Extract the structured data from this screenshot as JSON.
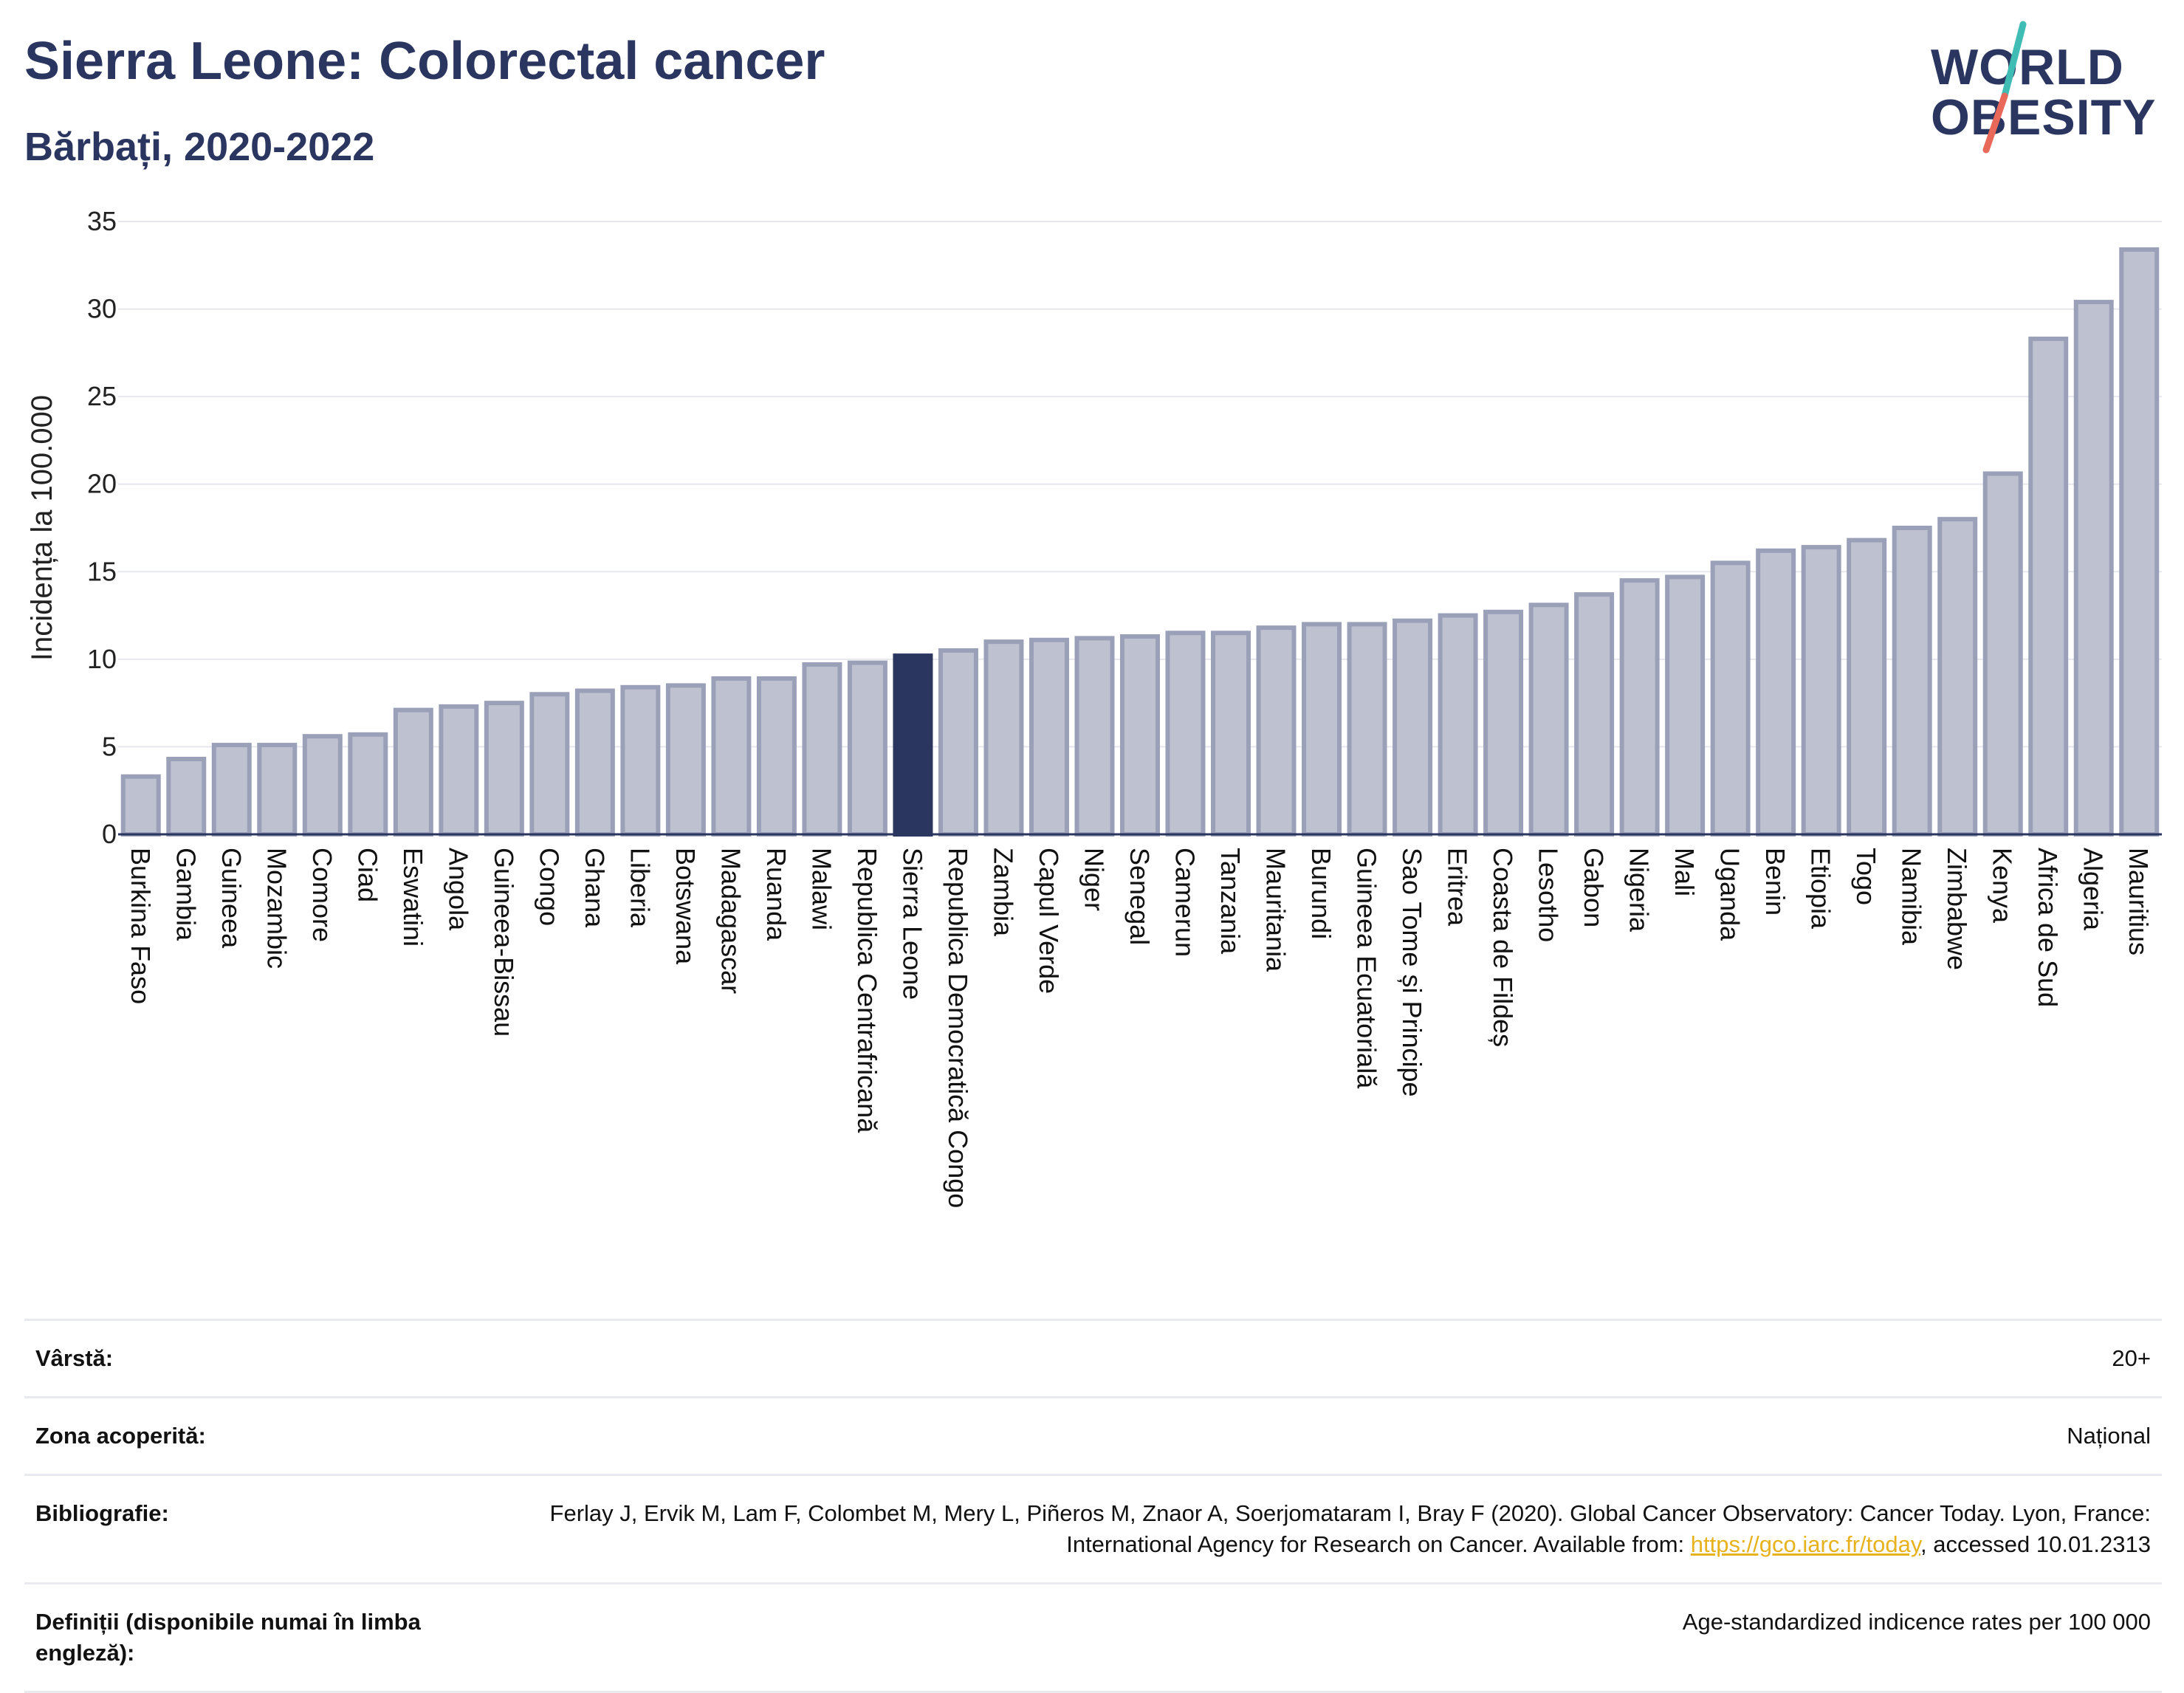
{
  "header": {
    "title": "Sierra Leone: Colorectal cancer",
    "subtitle": "Bărbați, 2020-2022"
  },
  "logo": {
    "line1": "WORLD",
    "line2": "OBESITY",
    "slash_colors": [
      "#3fbdb4",
      "#e8685a"
    ]
  },
  "chart_data": {
    "type": "bar",
    "ylabel": "Incidența la 100.000",
    "ylim": [
      0,
      35
    ],
    "yticks": [
      0,
      5,
      10,
      15,
      20,
      25,
      30,
      35
    ],
    "grid": true,
    "highlight": "Sierra Leone",
    "colors": {
      "bar": "#bec2d0",
      "bar_edge": "#9aa0b8",
      "highlight": "#2a3560"
    },
    "categories": [
      "Burkina Faso",
      "Gambia",
      "Guineea",
      "Mozambic",
      "Comore",
      "Ciad",
      "Eswatini",
      "Angola",
      "Guineea-Bissau",
      "Congo",
      "Ghana",
      "Liberia",
      "Botswana",
      "Madagascar",
      "Ruanda",
      "Malawi",
      "Republica Centrafricană",
      "Sierra Leone",
      "Republica Democratică Congo",
      "Zambia",
      "Capul Verde",
      "Niger",
      "Senegal",
      "Camerun",
      "Tanzania",
      "Mauritania",
      "Burundi",
      "Guineea Ecuatorială",
      "Sao Tome și Principe",
      "Eritrea",
      "Coasta de Fildeș",
      "Lesotho",
      "Gabon",
      "Nigeria",
      "Mali",
      "Uganda",
      "Benin",
      "Etiopia",
      "Togo",
      "Namibia",
      "Zimbabwe",
      "Kenya",
      "Africa de Sud",
      "Algeria",
      "Mauritius"
    ],
    "values": [
      3.3,
      4.3,
      5.1,
      5.1,
      5.6,
      5.7,
      7.1,
      7.3,
      7.5,
      8.0,
      8.2,
      8.4,
      8.5,
      8.9,
      8.9,
      9.7,
      9.8,
      10.2,
      10.5,
      11.0,
      11.1,
      11.2,
      11.3,
      11.5,
      11.5,
      11.8,
      12.0,
      12.0,
      12.2,
      12.5,
      12.7,
      13.1,
      13.7,
      14.5,
      14.7,
      15.5,
      16.2,
      16.4,
      16.8,
      17.5,
      18.0,
      20.6,
      28.3,
      30.4,
      33.4
    ]
  },
  "info": {
    "age_label": "Vârstă:",
    "age_value": "20+",
    "area_label": "Zona acoperită:",
    "area_value": "Național",
    "bib_label": "Bibliografie:",
    "bib_text_1": "Ferlay J, Ervik M, Lam F, Colombet M, Mery L, Piñeros M, Znaor A, Soerjomataram I, Bray F (2020). Global Cancer Observatory: Cancer Today. Lyon, France: International Agency for Research on Cancer. Available from: ",
    "bib_link": "https://gco.iarc.fr/today",
    "bib_text_2": ", accessed 10.01.2313",
    "def_label": "Definiții (disponibile numai în limba engleză):",
    "def_value": "Age-standardized indicence rates per 100 000"
  }
}
